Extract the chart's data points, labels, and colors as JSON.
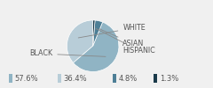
{
  "sizes": [
    36.4,
    57.6,
    4.8,
    1.3
  ],
  "colors": [
    "#b8cdd8",
    "#90b4c4",
    "#4d7f96",
    "#1a3a4a"
  ],
  "legend_pcts": [
    "57.6%",
    "36.4%",
    "4.8%",
    "1.3%"
  ],
  "legend_colors": [
    "#90b4c4",
    "#b8cdd8",
    "#4d7f96",
    "#1a3a4a"
  ],
  "background_color": "#f0f0f0",
  "label_fontsize": 5.8,
  "legend_fontsize": 6.0,
  "startangle": 90
}
